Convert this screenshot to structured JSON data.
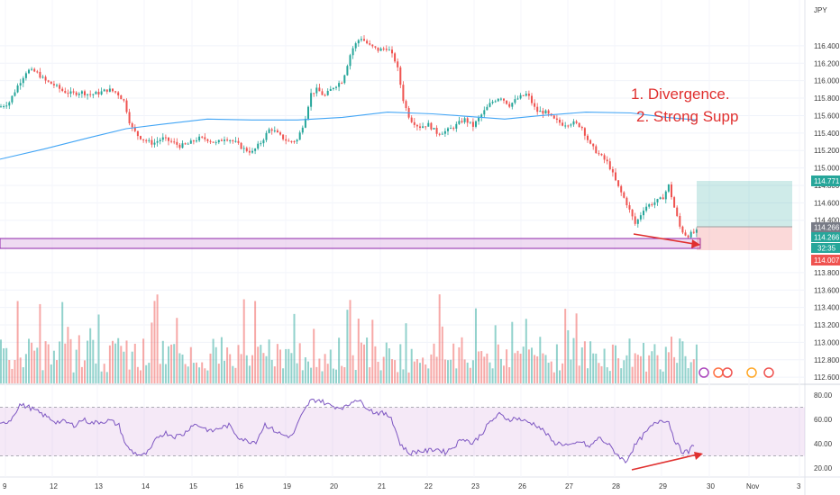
{
  "chart_data": {
    "type": "candlestick",
    "symbol": "JPY",
    "annotations": [
      "1. Divergence.",
      "2. Strong Supp"
    ],
    "price_axis": {
      "ylim": [
        112.55,
        116.75
      ],
      "ticks": [
        "116.400",
        "116.200",
        "116.000",
        "115.800",
        "115.600",
        "115.400",
        "115.200",
        "115.000",
        "114.800",
        "114.600",
        "114.400",
        "113.800",
        "113.600",
        "113.400",
        "113.200",
        "113.000",
        "112.800",
        "112.600"
      ]
    },
    "rsi_axis": {
      "ylim": [
        15,
        85
      ],
      "ticks": [
        "80.00",
        "60.00",
        "40.00",
        "20.00"
      ],
      "band": [
        30,
        70
      ]
    },
    "x_axis": {
      "labels": [
        "9",
        "12",
        "13",
        "14",
        "15",
        "16",
        "19",
        "20",
        "21",
        "22",
        "23",
        "26",
        "27",
        "28",
        "29",
        "30",
        "Nov",
        "3"
      ]
    },
    "price_labels": [
      {
        "text": "114.771",
        "color": "#26a69a"
      },
      {
        "text": "114.266",
        "color": "#787b86"
      },
      {
        "text": "114.266",
        "color": "#26a69a"
      },
      {
        "text": "32:35",
        "color": "#26a69a"
      },
      {
        "text": "114.007",
        "color": "#ef5350"
      }
    ],
    "close_path": [
      [
        0,
        115.7
      ],
      [
        10,
        115.75
      ],
      [
        20,
        115.95
      ],
      [
        30,
        116.12
      ],
      [
        40,
        116.1
      ],
      [
        50,
        116.0
      ],
      [
        60,
        115.95
      ],
      [
        70,
        115.88
      ],
      [
        80,
        115.85
      ],
      [
        90,
        115.87
      ],
      [
        100,
        115.84
      ],
      [
        110,
        115.86
      ],
      [
        120,
        115.9
      ],
      [
        130,
        115.86
      ],
      [
        138,
        115.76
      ],
      [
        145,
        115.48
      ],
      [
        152,
        115.38
      ],
      [
        160,
        115.32
      ],
      [
        170,
        115.28
      ],
      [
        180,
        115.34
      ],
      [
        190,
        115.3
      ],
      [
        200,
        115.25
      ],
      [
        210,
        115.28
      ],
      [
        220,
        115.34
      ],
      [
        230,
        115.33
      ],
      [
        240,
        115.28
      ],
      [
        250,
        115.35
      ],
      [
        260,
        115.3
      ],
      [
        270,
        115.22
      ],
      [
        280,
        115.18
      ],
      [
        290,
        115.3
      ],
      [
        300,
        115.46
      ],
      [
        310,
        115.37
      ],
      [
        320,
        115.3
      ],
      [
        330,
        115.32
      ],
      [
        338,
        115.55
      ],
      [
        345,
        115.85
      ],
      [
        352,
        115.9
      ],
      [
        360,
        115.82
      ],
      [
        370,
        115.93
      ],
      [
        380,
        116.0
      ],
      [
        390,
        116.35
      ],
      [
        400,
        116.5
      ],
      [
        410,
        116.4
      ],
      [
        420,
        116.35
      ],
      [
        430,
        116.38
      ],
      [
        440,
        116.2
      ],
      [
        448,
        115.75
      ],
      [
        455,
        115.56
      ],
      [
        465,
        115.47
      ],
      [
        475,
        115.5
      ],
      [
        485,
        115.4
      ],
      [
        495,
        115.42
      ],
      [
        505,
        115.48
      ],
      [
        515,
        115.56
      ],
      [
        525,
        115.48
      ],
      [
        535,
        115.62
      ],
      [
        545,
        115.75
      ],
      [
        555,
        115.82
      ],
      [
        565,
        115.72
      ],
      [
        575,
        115.8
      ],
      [
        585,
        115.85
      ],
      [
        595,
        115.65
      ],
      [
        605,
        115.64
      ],
      [
        615,
        115.55
      ],
      [
        625,
        115.5
      ],
      [
        635,
        115.52
      ],
      [
        645,
        115.48
      ],
      [
        655,
        115.26
      ],
      [
        665,
        115.15
      ],
      [
        675,
        115.05
      ],
      [
        685,
        114.8
      ],
      [
        695,
        114.6
      ],
      [
        705,
        114.35
      ],
      [
        715,
        114.55
      ],
      [
        725,
        114.6
      ],
      [
        735,
        114.65
      ],
      [
        742,
        114.8
      ],
      [
        748,
        114.55
      ],
      [
        755,
        114.3
      ],
      [
        762,
        114.22
      ],
      [
        768,
        114.25
      ],
      [
        773,
        114.27
      ]
    ],
    "ma_path": [
      [
        0,
        115.1
      ],
      [
        50,
        115.22
      ],
      [
        100,
        115.35
      ],
      [
        140,
        115.45
      ],
      [
        180,
        115.5
      ],
      [
        230,
        115.56
      ],
      [
        280,
        115.55
      ],
      [
        330,
        115.55
      ],
      [
        380,
        115.58
      ],
      [
        430,
        115.64
      ],
      [
        480,
        115.62
      ],
      [
        520,
        115.59
      ],
      [
        560,
        115.56
      ],
      [
        600,
        115.6
      ],
      [
        650,
        115.64
      ],
      [
        700,
        115.63
      ],
      [
        740,
        115.58
      ],
      [
        773,
        115.55
      ]
    ],
    "rsi_path": [
      [
        0,
        55
      ],
      [
        12,
        60
      ],
      [
        22,
        72
      ],
      [
        32,
        70
      ],
      [
        42,
        66
      ],
      [
        52,
        62
      ],
      [
        62,
        58
      ],
      [
        72,
        58
      ],
      [
        82,
        55
      ],
      [
        92,
        60
      ],
      [
        102,
        57
      ],
      [
        112,
        58
      ],
      [
        122,
        59
      ],
      [
        132,
        55
      ],
      [
        140,
        38
      ],
      [
        148,
        33
      ],
      [
        158,
        30
      ],
      [
        166,
        34
      ],
      [
        175,
        46
      ],
      [
        184,
        49
      ],
      [
        194,
        46
      ],
      [
        204,
        48
      ],
      [
        214,
        56
      ],
      [
        224,
        54
      ],
      [
        234,
        50
      ],
      [
        244,
        53
      ],
      [
        254,
        55
      ],
      [
        264,
        46
      ],
      [
        274,
        42
      ],
      [
        284,
        42
      ],
      [
        294,
        56
      ],
      [
        304,
        51
      ],
      [
        314,
        47
      ],
      [
        324,
        46
      ],
      [
        334,
        62
      ],
      [
        344,
        75
      ],
      [
        354,
        76
      ],
      [
        364,
        72
      ],
      [
        374,
        70
      ],
      [
        384,
        70
      ],
      [
        394,
        77
      ],
      [
        404,
        72
      ],
      [
        414,
        66
      ],
      [
        424,
        65
      ],
      [
        434,
        62
      ],
      [
        444,
        40
      ],
      [
        454,
        32
      ],
      [
        464,
        34
      ],
      [
        474,
        34
      ],
      [
        484,
        36
      ],
      [
        494,
        33
      ],
      [
        504,
        38
      ],
      [
        514,
        45
      ],
      [
        524,
        40
      ],
      [
        534,
        48
      ],
      [
        544,
        58
      ],
      [
        554,
        64
      ],
      [
        564,
        60
      ],
      [
        574,
        61
      ],
      [
        584,
        58
      ],
      [
        594,
        56
      ],
      [
        604,
        50
      ],
      [
        614,
        41
      ],
      [
        624,
        40
      ],
      [
        634,
        38
      ],
      [
        644,
        42
      ],
      [
        654,
        37
      ],
      [
        664,
        45
      ],
      [
        674,
        40
      ],
      [
        684,
        32
      ],
      [
        694,
        25
      ],
      [
        704,
        38
      ],
      [
        714,
        47
      ],
      [
        724,
        55
      ],
      [
        734,
        60
      ],
      [
        742,
        58
      ],
      [
        748,
        44
      ],
      [
        756,
        34
      ],
      [
        764,
        33
      ],
      [
        770,
        40
      ]
    ]
  }
}
